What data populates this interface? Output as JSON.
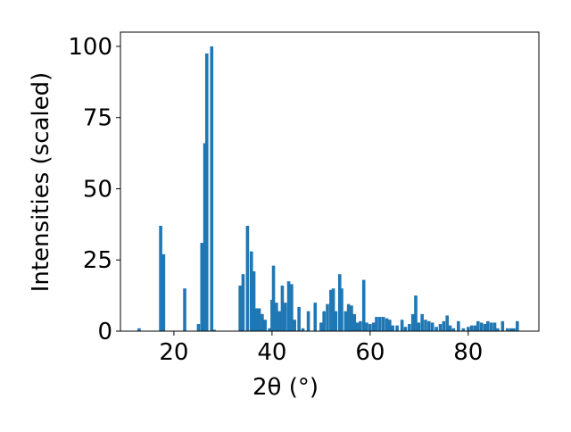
{
  "chart_data": {
    "type": "bar",
    "xlabel": "2θ (°)",
    "ylabel": "Intensities (scaled)",
    "color": "#1f77b4",
    "x": [
      12.9,
      17.3,
      17.9,
      22.2,
      25.0,
      25.7,
      26.3,
      26.7,
      27.7,
      28.2,
      33.5,
      34.1,
      35.0,
      35.8,
      36.3,
      36.8,
      37.4,
      38.0,
      38.6,
      39.5,
      40.0,
      40.3,
      40.9,
      41.5,
      42.1,
      42.7,
      43.4,
      44.0,
      44.6,
      45.5,
      46.3,
      47.4,
      48.8,
      50.0,
      50.6,
      51.3,
      52.0,
      52.5,
      53.0,
      53.8,
      54.2,
      55.0,
      55.6,
      56.2,
      56.8,
      57.4,
      58.0,
      58.7,
      59.3,
      60.0,
      60.7,
      61.3,
      62.0,
      62.7,
      63.4,
      64.0,
      64.6,
      65.5,
      66.5,
      67.2,
      68.0,
      68.7,
      69.3,
      69.9,
      70.6,
      71.3,
      72.0,
      72.7,
      73.5,
      74.3,
      75.0,
      75.7,
      76.3,
      77.0,
      78.0,
      79.0,
      80.0,
      80.7,
      81.4,
      82.0,
      82.7,
      83.4,
      84.0,
      84.7,
      85.4,
      86.0,
      87.0,
      88.0,
      88.7,
      89.3,
      90.0
    ],
    "values": [
      1,
      37,
      27,
      15,
      2.5,
      31,
      66,
      97.5,
      100,
      0.5,
      16,
      20,
      37,
      28,
      21,
      8,
      8,
      6,
      4,
      1,
      11,
      23,
      10,
      7,
      16,
      10,
      17.5,
      16.5,
      4,
      8.5,
      1,
      7,
      10,
      3,
      7,
      9.5,
      14.5,
      15,
      7,
      20,
      15,
      7,
      9.5,
      9,
      6,
      3,
      3.5,
      18,
      3,
      2.5,
      3,
      5,
      5,
      5,
      4.5,
      4,
      2,
      2,
      4,
      1.5,
      2.5,
      6,
      12.5,
      3,
      6,
      4,
      3.5,
      3,
      1.5,
      2.5,
      3.5,
      5.5,
      2,
      1,
      3.5,
      1,
      1.5,
      2,
      2,
      3.5,
      3,
      2.5,
      3.5,
      3,
      3,
      1,
      3.5,
      1,
      1,
      1,
      3.5
    ],
    "xlim": [
      9.1,
      94.4
    ],
    "ylim": [
      0,
      105
    ],
    "xticks": [
      20,
      40,
      60,
      80
    ],
    "yticks": [
      0,
      25,
      50,
      75,
      100
    ]
  }
}
